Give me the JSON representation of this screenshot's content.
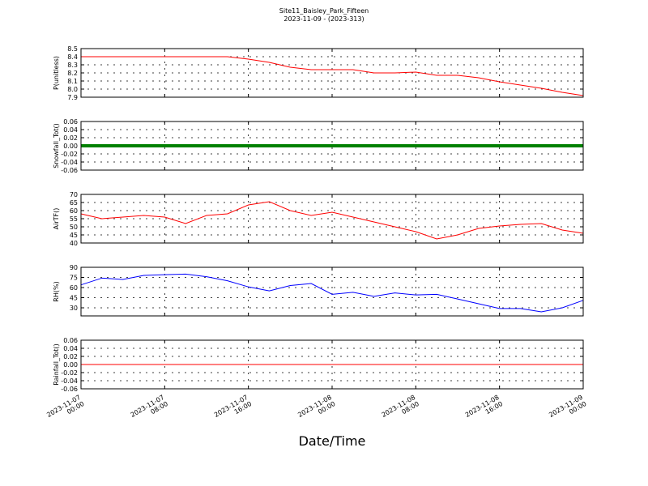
{
  "chart_data": [
    {
      "type": "line",
      "title": "Site11_Baisley_Park_Fifteen",
      "subtitle": "2023-11-09 - (2023-313)",
      "ylabel": "P(unitless)",
      "x": [
        "2023-11-07 00:00",
        "2023-11-07 02:00",
        "2023-11-07 04:00",
        "2023-11-07 06:00",
        "2023-11-07 08:00",
        "2023-11-07 10:00",
        "2023-11-07 12:00",
        "2023-11-07 14:00",
        "2023-11-07 16:00",
        "2023-11-07 18:00",
        "2023-11-07 20:00",
        "2023-11-07 22:00",
        "2023-11-08 00:00",
        "2023-11-08 02:00",
        "2023-11-08 04:00",
        "2023-11-08 06:00",
        "2023-11-08 08:00",
        "2023-11-08 10:00",
        "2023-11-08 12:00",
        "2023-11-08 14:00",
        "2023-11-08 16:00",
        "2023-11-08 18:00",
        "2023-11-08 20:00",
        "2023-11-08 22:00",
        "2023-11-09 00:00"
      ],
      "series": [
        {
          "color": "#ff0000",
          "values": [
            8.4,
            8.4,
            8.4,
            8.4,
            8.4,
            8.4,
            8.4,
            8.4,
            8.37,
            8.33,
            8.27,
            8.24,
            8.24,
            8.24,
            8.2,
            8.2,
            8.21,
            8.17,
            8.17,
            8.14,
            8.09,
            8.05,
            8.01,
            7.96,
            7.92
          ]
        }
      ],
      "ylim": [
        7.9,
        8.5
      ],
      "yticks": [
        7.9,
        {
          "value": 8,
          "label": "8.0"
        },
        8.1,
        8.2,
        8.3,
        8.4,
        8.5
      ],
      "grid": true
    },
    {
      "type": "line",
      "ylabel": "Snowfall_Tot()",
      "x": [
        "2023-11-07 00:00",
        "2023-11-07 02:00",
        "2023-11-07 04:00",
        "2023-11-07 06:00",
        "2023-11-07 08:00",
        "2023-11-07 10:00",
        "2023-11-07 12:00",
        "2023-11-07 14:00",
        "2023-11-07 16:00",
        "2023-11-07 18:00",
        "2023-11-07 20:00",
        "2023-11-07 22:00",
        "2023-11-08 00:00",
        "2023-11-08 02:00",
        "2023-11-08 04:00",
        "2023-11-08 06:00",
        "2023-11-08 08:00",
        "2023-11-08 10:00",
        "2023-11-08 12:00",
        "2023-11-08 14:00",
        "2023-11-08 16:00",
        "2023-11-08 18:00",
        "2023-11-08 20:00",
        "2023-11-08 22:00",
        "2023-11-09 00:00"
      ],
      "series": [
        {
          "color": "#008000",
          "values": [
            0,
            0,
            0,
            0,
            0,
            0,
            0,
            0,
            0,
            0,
            0,
            0,
            0,
            0,
            0,
            0,
            0,
            0,
            0,
            0,
            0,
            0,
            0,
            0,
            0
          ]
        }
      ],
      "ylim": [
        -0.06,
        0.06
      ],
      "yticks": [
        -0.06,
        -0.04,
        -0.02,
        {
          "value": 0,
          "label": "0.00"
        },
        0.02,
        0.04,
        0.06
      ],
      "grid": true
    },
    {
      "type": "line",
      "ylabel": "AirTF()",
      "x": [
        "2023-11-07 00:00",
        "2023-11-07 02:00",
        "2023-11-07 04:00",
        "2023-11-07 06:00",
        "2023-11-07 08:00",
        "2023-11-07 10:00",
        "2023-11-07 12:00",
        "2023-11-07 14:00",
        "2023-11-07 16:00",
        "2023-11-07 18:00",
        "2023-11-07 20:00",
        "2023-11-07 22:00",
        "2023-11-08 00:00",
        "2023-11-08 02:00",
        "2023-11-08 04:00",
        "2023-11-08 06:00",
        "2023-11-08 08:00",
        "2023-11-08 10:00",
        "2023-11-08 12:00",
        "2023-11-08 14:00",
        "2023-11-08 16:00",
        "2023-11-08 18:00",
        "2023-11-08 20:00",
        "2023-11-08 22:00",
        "2023-11-09 00:00"
      ],
      "series": [
        {
          "color": "#ff0000",
          "values": [
            58,
            55,
            56,
            57,
            56,
            52,
            57,
            58,
            63.5,
            65.5,
            60,
            57,
            59,
            56,
            53,
            50,
            47,
            42.5,
            45,
            49,
            50.5,
            51.5,
            52,
            48,
            46
          ]
        }
      ],
      "ylim": [
        40,
        70
      ],
      "yticks": [
        40,
        45,
        50,
        55,
        60,
        65,
        70
      ],
      "grid": true
    },
    {
      "type": "line",
      "ylabel": "RH(%)",
      "x": [
        "2023-11-07 00:00",
        "2023-11-07 02:00",
        "2023-11-07 04:00",
        "2023-11-07 06:00",
        "2023-11-07 08:00",
        "2023-11-07 10:00",
        "2023-11-07 12:00",
        "2023-11-07 14:00",
        "2023-11-07 16:00",
        "2023-11-07 18:00",
        "2023-11-07 20:00",
        "2023-11-07 22:00",
        "2023-11-08 00:00",
        "2023-11-08 02:00",
        "2023-11-08 04:00",
        "2023-11-08 06:00",
        "2023-11-08 08:00",
        "2023-11-08 10:00",
        "2023-11-08 12:00",
        "2023-11-08 14:00",
        "2023-11-08 16:00",
        "2023-11-08 18:00",
        "2023-11-08 20:00",
        "2023-11-08 22:00",
        "2023-11-09 00:00"
      ],
      "series": [
        {
          "color": "#0000ff",
          "values": [
            64,
            74,
            72,
            78,
            79,
            80,
            76,
            70,
            61,
            55,
            63,
            66,
            50,
            53,
            47,
            52,
            49,
            50,
            43,
            36,
            29,
            29,
            24,
            30,
            41
          ]
        }
      ],
      "ylim": [
        18,
        90
      ],
      "yticks": [
        30,
        45,
        60,
        75,
        90
      ],
      "grid": true
    },
    {
      "type": "line",
      "ylabel": "Rainfall_Tot()",
      "xlabel": "Date/Time",
      "x": [
        "2023-11-07 00:00",
        "2023-11-07 02:00",
        "2023-11-07 04:00",
        "2023-11-07 06:00",
        "2023-11-07 08:00",
        "2023-11-07 10:00",
        "2023-11-07 12:00",
        "2023-11-07 14:00",
        "2023-11-07 16:00",
        "2023-11-07 18:00",
        "2023-11-07 20:00",
        "2023-11-07 22:00",
        "2023-11-08 00:00",
        "2023-11-08 02:00",
        "2023-11-08 04:00",
        "2023-11-08 06:00",
        "2023-11-08 08:00",
        "2023-11-08 10:00",
        "2023-11-08 12:00",
        "2023-11-08 14:00",
        "2023-11-08 16:00",
        "2023-11-08 18:00",
        "2023-11-08 20:00",
        "2023-11-08 22:00",
        "2023-11-09 00:00"
      ],
      "series": [
        {
          "color": "#ff0000",
          "values": [
            0,
            0,
            0,
            0,
            0,
            0,
            0,
            0,
            0,
            0,
            0,
            0,
            0,
            0,
            0,
            0,
            0,
            0,
            0,
            0,
            0,
            0,
            0,
            0,
            0
          ]
        }
      ],
      "ylim": [
        -0.06,
        0.06
      ],
      "yticks": [
        -0.06,
        -0.04,
        -0.02,
        {
          "value": 0,
          "label": "0.00"
        },
        0.02,
        0.04,
        0.06
      ],
      "xlim": [
        "2023-11-07 00:00",
        "2023-11-09 00:00"
      ],
      "xticks": [
        "2023-11-07 00:00",
        "2023-11-07 08:00",
        "2023-11-07 16:00",
        "2023-11-08 00:00",
        "2023-11-08 08:00",
        "2023-11-08 16:00",
        "2023-11-09 00:00"
      ],
      "grid": true
    }
  ]
}
